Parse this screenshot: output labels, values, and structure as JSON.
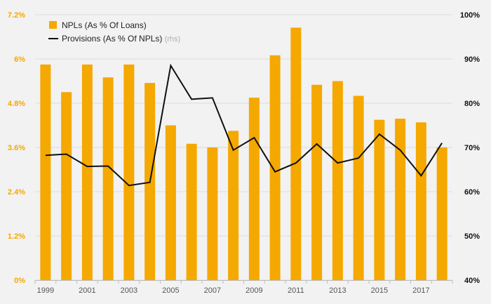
{
  "chart_data": {
    "type": "bar+line",
    "x": [
      "1999",
      "2000",
      "2001",
      "2002",
      "2003",
      "2004",
      "2005",
      "2006",
      "2007",
      "2008",
      "2009",
      "2010",
      "2011",
      "2012",
      "2013",
      "2014",
      "2015",
      "2016",
      "2017",
      "2018"
    ],
    "x_tick_labels": [
      "1999",
      "2001",
      "2003",
      "2005",
      "2007",
      "2009",
      "2011",
      "2013",
      "2015",
      "2017"
    ],
    "series": [
      {
        "name": "NPLs (As % Of Loans)",
        "type": "bar",
        "axis": "left",
        "color": "#f5a800",
        "values": [
          5.85,
          5.1,
          5.85,
          5.5,
          5.85,
          5.35,
          4.2,
          3.7,
          3.6,
          4.05,
          4.95,
          6.1,
          6.85,
          5.3,
          5.4,
          5.0,
          4.35,
          4.38,
          4.28,
          3.6
        ]
      },
      {
        "name": "Provisions (As % Of NPLs)",
        "name_note": "(rhs)",
        "type": "line",
        "axis": "right",
        "color": "#111111",
        "values": [
          68.2,
          68.5,
          65.7,
          65.8,
          61.4,
          62.1,
          88.5,
          80.9,
          81.2,
          69.4,
          72.2,
          64.5,
          66.5,
          70.8,
          66.5,
          67.6,
          73.0,
          69.4,
          63.6,
          71.0
        ]
      }
    ],
    "left_axis": {
      "ylim": [
        0,
        7.2
      ],
      "ticks": [
        "0%",
        "1.2%",
        "2.4%",
        "3.6%",
        "4.8%",
        "6%",
        "7.2%"
      ]
    },
    "right_axis": {
      "ylim": [
        40,
        100
      ],
      "ticks": [
        "40%",
        "50%",
        "60%",
        "70%",
        "80%",
        "90%",
        "100%"
      ]
    },
    "grid": true,
    "legend_position": "top-left"
  }
}
